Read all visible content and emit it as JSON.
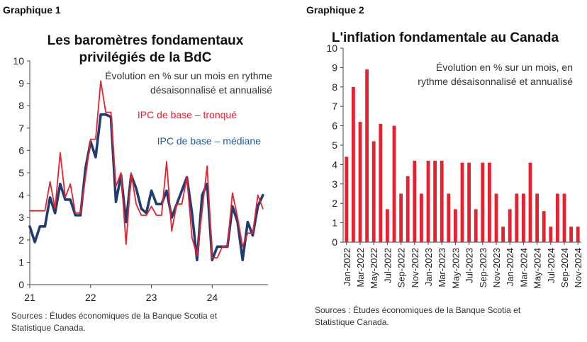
{
  "chart_data": [
    {
      "type": "line",
      "label": "Graphique 1",
      "title_line1": "Les baromètres fondamentaux",
      "title_line2": "privilégiés de la BdC",
      "subtitle_line1": "Évolution en % sur un mois en rythme",
      "subtitle_line2": "désaisonnalisé et annualisé",
      "ylim": [
        0,
        10
      ],
      "yticks": [
        "0",
        "1",
        "2",
        "3",
        "4",
        "5",
        "6",
        "7",
        "8",
        "9",
        "10"
      ],
      "xlim": [
        2021,
        2024.9167
      ],
      "xticks": [
        {
          "value": 2021,
          "label": "21"
        },
        {
          "value": 2022,
          "label": "22"
        },
        {
          "value": 2023,
          "label": "23"
        },
        {
          "value": 2024,
          "label": "24"
        }
      ],
      "grid": false,
      "series": [
        {
          "name": "IPC de base – tronqué",
          "color": "#e8212e",
          "x_start": 2021,
          "x_step": 0.08333,
          "values": [
            3.3,
            3.3,
            3.3,
            3.3,
            4.6,
            3.4,
            5.9,
            3.9,
            4.5,
            3.2,
            3.2,
            4.8,
            6.5,
            6.5,
            9.1,
            7.7,
            7.7,
            4.4,
            5.0,
            1.8,
            5.0,
            3.6,
            3.1,
            3.1,
            3.5,
            3.1,
            3.1,
            5.5,
            2.4,
            3.6,
            3.6,
            4.8,
            2.1,
            1.3,
            3.3,
            5.3,
            1.2,
            1.2,
            1.7,
            1.7,
            4.1,
            3.0,
            1.7,
            2.3,
            2.3,
            4.0,
            3.4
          ]
        },
        {
          "name": "IPC de base – médiane",
          "color": "#1f3d73",
          "x_start": 2021,
          "x_step": 0.08333,
          "values": [
            2.6,
            1.9,
            2.6,
            2.6,
            3.9,
            3.2,
            4.5,
            3.8,
            3.8,
            3.1,
            3.1,
            5.2,
            6.4,
            5.7,
            7.6,
            7.6,
            7.5,
            3.7,
            4.9,
            2.8,
            4.9,
            4.3,
            3.4,
            3.2,
            4.2,
            3.6,
            3.6,
            4.2,
            3.0,
            3.6,
            4.2,
            4.8,
            3.2,
            1.1,
            4.0,
            4.5,
            1.1,
            1.7,
            1.7,
            1.7,
            3.5,
            2.8,
            1.1,
            2.8,
            2.2,
            3.5,
            4.0
          ]
        }
      ]
    },
    {
      "type": "bar",
      "label": "Graphique 2",
      "title": "L'inflation fondamentale au Canada",
      "subtitle_line1": "Évolution en % sur un mois, en",
      "subtitle_line2": "rythme désaisonnalisé et annualisé",
      "ylim": [
        0,
        10
      ],
      "yticks": [
        "0",
        "1",
        "2",
        "3",
        "4",
        "5",
        "6",
        "7",
        "8",
        "9",
        "10"
      ],
      "grid": false,
      "color": "#e8212e",
      "tick_labels": [
        "Jan-2022",
        "Mar-2022",
        "May-2022",
        "Jul-2022",
        "Sep-2022",
        "Nov-2022",
        "Jan-2023",
        "Mar-2023",
        "May-2023",
        "Jul-2023",
        "Sep-2023",
        "Nov-2023",
        "Jan-2024",
        "Mar-2024",
        "May-2024",
        "Jul-2024",
        "Sep-2024",
        "Nov-2024"
      ],
      "values": [
        4.4,
        8.0,
        6.2,
        8.9,
        5.2,
        6.1,
        1.7,
        6.0,
        2.5,
        3.4,
        4.2,
        2.5,
        4.2,
        4.2,
        4.2,
        2.5,
        1.7,
        4.1,
        4.1,
        1.7,
        4.1,
        4.1,
        2.5,
        0.8,
        1.7,
        2.5,
        2.5,
        4.1,
        2.5,
        1.6,
        0.8,
        2.5,
        2.5,
        0.8,
        0.8
      ]
    }
  ],
  "sources_line1": "Sources : Études économiques de la Banque Scotia et",
  "sources_line2": "Statistique Canada."
}
